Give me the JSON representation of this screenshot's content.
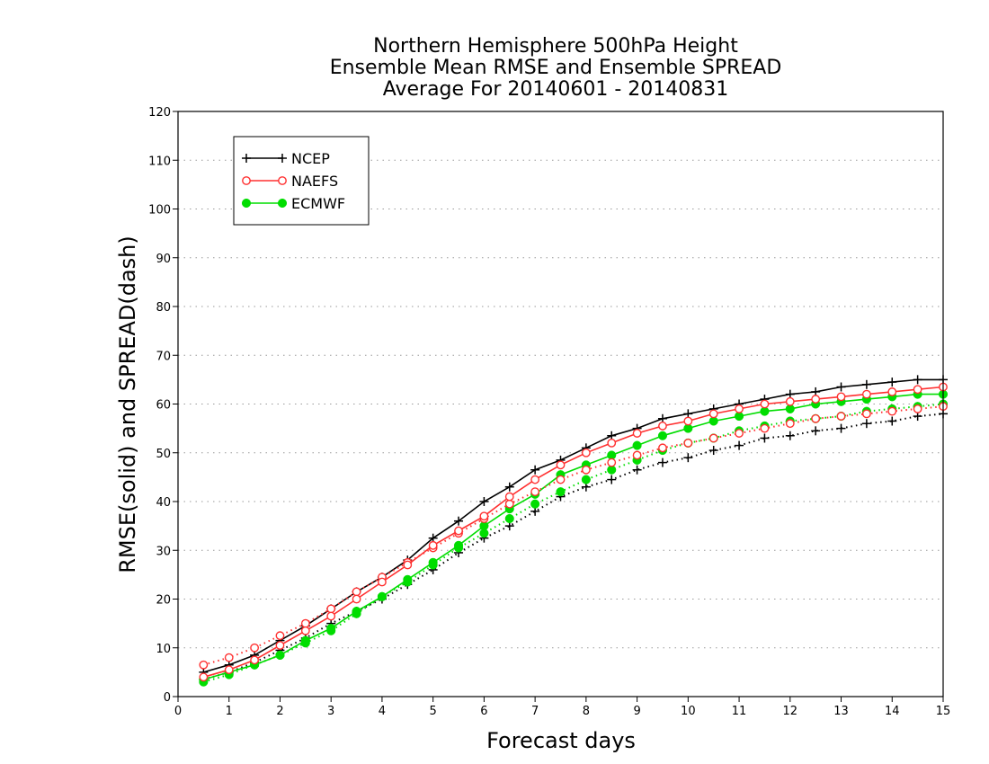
{
  "chart_data": {
    "type": "line",
    "title_lines": [
      "Northern Hemisphere 500hPa Height",
      "Ensemble Mean RMSE and Ensemble SPREAD",
      "Average For 20140601 - 20140831"
    ],
    "xlabel": "Forecast days",
    "ylabel": "RMSE(solid) and SPREAD(dash)",
    "xlim": [
      0,
      15
    ],
    "ylim": [
      0,
      120
    ],
    "x_ticks": [
      0,
      1,
      2,
      3,
      4,
      5,
      6,
      7,
      8,
      9,
      10,
      11,
      12,
      13,
      14,
      15
    ],
    "y_ticks": [
      0,
      10,
      20,
      30,
      40,
      50,
      60,
      70,
      80,
      90,
      100,
      110,
      120
    ],
    "grid": "horizontal dotted",
    "legend_position": "top-left",
    "x": [
      0.5,
      1,
      1.5,
      2,
      2.5,
      3,
      3.5,
      4,
      4.5,
      5,
      5.5,
      6,
      6.5,
      7,
      7.5,
      8,
      8.5,
      9,
      9.5,
      10,
      10.5,
      11,
      11.5,
      12,
      12.5,
      13,
      13.5,
      14,
      14.5,
      15
    ],
    "series": [
      {
        "name": "NCEP",
        "color": "#000000",
        "marker": "plus",
        "rmse": [
          5,
          6.5,
          8.5,
          11.5,
          14.5,
          18,
          21.5,
          24.5,
          28,
          32.5,
          36,
          40,
          43,
          46.5,
          48.5,
          51,
          53.5,
          55,
          57,
          58,
          59,
          60,
          61,
          62,
          62.5,
          63.5,
          64,
          64.5,
          65,
          65
        ],
        "spread": [
          3.5,
          5,
          7,
          9.5,
          12,
          15,
          17.5,
          20,
          23,
          26,
          29.5,
          32.5,
          35,
          38,
          41,
          43,
          44.5,
          46.5,
          48,
          49,
          50.5,
          51.5,
          53,
          53.5,
          54.5,
          55,
          56,
          56.5,
          57.5,
          58
        ]
      },
      {
        "name": "NAEFS",
        "color": "#ff3030",
        "marker": "circle-open",
        "rmse": [
          4,
          5.5,
          7.5,
          10.5,
          13.5,
          16.5,
          20,
          23.5,
          27,
          31,
          34,
          37,
          41,
          44.5,
          47.5,
          50,
          52,
          54,
          55.5,
          56.5,
          58,
          59,
          60,
          60.5,
          61,
          61.5,
          62,
          62.5,
          63,
          63.5
        ],
        "spread": [
          6.5,
          8,
          10,
          12.5,
          15,
          18,
          21.5,
          24.5,
          27.5,
          30.5,
          33.5,
          36.5,
          39.5,
          42,
          44.5,
          46.5,
          48,
          49.5,
          51,
          52,
          53,
          54,
          55,
          56,
          57,
          57.5,
          58,
          58.5,
          59,
          59.5
        ]
      },
      {
        "name": "ECMWF",
        "color": "#00dd00",
        "marker": "circle-filled",
        "rmse": [
          3.5,
          5,
          6.5,
          8.5,
          11.5,
          14,
          17.5,
          20.5,
          24,
          27.5,
          31,
          35,
          38.5,
          41.5,
          45.5,
          47.5,
          49.5,
          51.5,
          53.5,
          55,
          56.5,
          57.5,
          58.5,
          59,
          60,
          60.5,
          61,
          61.5,
          62,
          62
        ],
        "spread": [
          3,
          4.5,
          6.5,
          8.5,
          11,
          13.5,
          17,
          20.5,
          23.5,
          27,
          30.5,
          33.5,
          36.5,
          39.5,
          42,
          44.5,
          46.5,
          48.5,
          50.5,
          52,
          53,
          54.5,
          55.5,
          56.5,
          57,
          57.5,
          58.5,
          59,
          59.5,
          60
        ]
      }
    ]
  }
}
